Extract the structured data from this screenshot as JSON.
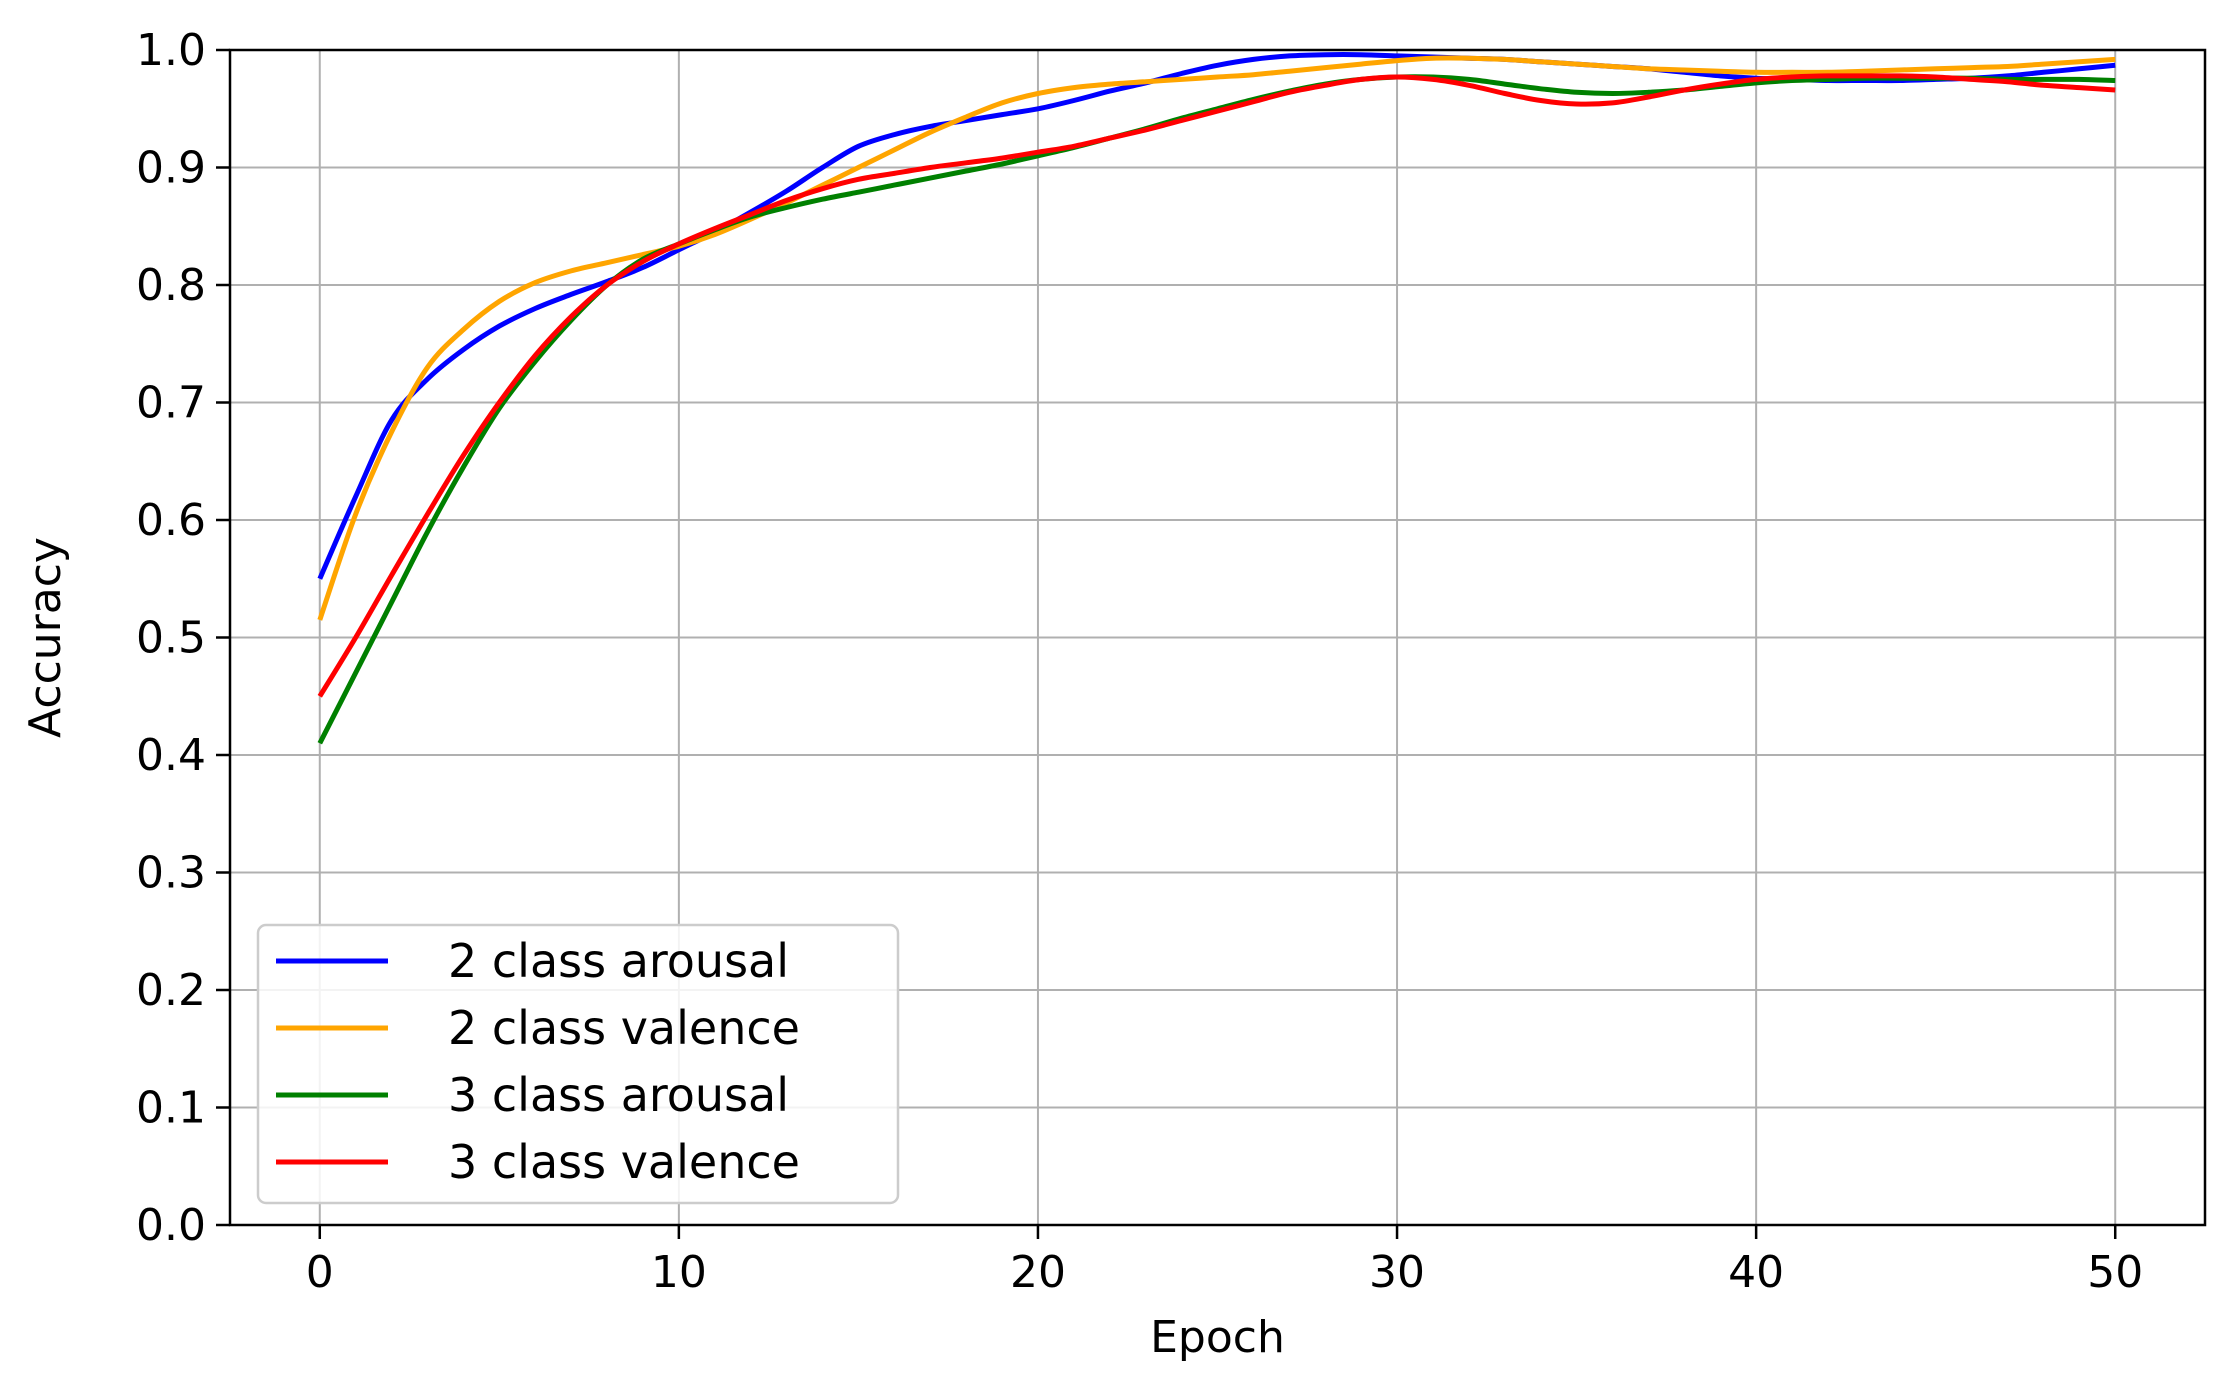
{
  "chart_data": {
    "type": "line",
    "title": "",
    "xlabel": "Epoch",
    "ylabel": "Accuracy",
    "xlim": [
      -2.5,
      52.5
    ],
    "ylim": [
      0.0,
      1.0
    ],
    "xticks": [
      0,
      10,
      20,
      30,
      40,
      50
    ],
    "xtick_labels": [
      "0",
      "10",
      "20",
      "30",
      "40",
      "50"
    ],
    "yticks": [
      0.0,
      0.1,
      0.2,
      0.3,
      0.4,
      0.5,
      0.6,
      0.7,
      0.8,
      0.9,
      1.0
    ],
    "ytick_labels": [
      "0.0",
      "0.1",
      "0.2",
      "0.3",
      "0.4",
      "0.5",
      "0.6",
      "0.7",
      "0.8",
      "0.9",
      "1.0"
    ],
    "grid": true,
    "legend_position": "lower-left",
    "x": [
      0,
      1,
      2,
      3,
      4,
      5,
      6,
      7,
      8,
      9,
      10,
      11,
      12,
      13,
      14,
      15,
      16,
      17,
      18,
      19,
      20,
      21,
      22,
      23,
      24,
      25,
      26,
      27,
      28,
      29,
      30,
      31,
      32,
      33,
      34,
      35,
      36,
      37,
      38,
      39,
      40,
      41,
      42,
      43,
      44,
      45,
      46,
      47,
      48,
      49,
      50
    ],
    "series": [
      {
        "name": "2 class arousal",
        "color": "#0000ff",
        "values": [
          0.55,
          0.62,
          0.685,
          0.72,
          0.745,
          0.765,
          0.78,
          0.792,
          0.803,
          0.815,
          0.83,
          0.845,
          0.862,
          0.88,
          0.9,
          0.918,
          0.928,
          0.935,
          0.94,
          0.945,
          0.95,
          0.957,
          0.965,
          0.972,
          0.98,
          0.987,
          0.992,
          0.995,
          0.996,
          0.996,
          0.995,
          0.994,
          0.993,
          0.992,
          0.99,
          0.988,
          0.986,
          0.984,
          0.981,
          0.978,
          0.976,
          0.975,
          0.974,
          0.974,
          0.974,
          0.975,
          0.976,
          0.978,
          0.981,
          0.984,
          0.987
        ]
      },
      {
        "name": "2 class valence",
        "color": "#ffa500",
        "values": [
          0.515,
          0.605,
          0.675,
          0.73,
          0.762,
          0.786,
          0.802,
          0.812,
          0.819,
          0.826,
          0.833,
          0.843,
          0.856,
          0.87,
          0.885,
          0.9,
          0.915,
          0.93,
          0.943,
          0.955,
          0.963,
          0.968,
          0.971,
          0.973,
          0.975,
          0.977,
          0.979,
          0.982,
          0.985,
          0.988,
          0.991,
          0.993,
          0.993,
          0.992,
          0.99,
          0.988,
          0.986,
          0.984,
          0.983,
          0.982,
          0.981,
          0.981,
          0.981,
          0.982,
          0.983,
          0.984,
          0.985,
          0.986,
          0.988,
          0.99,
          0.992
        ]
      },
      {
        "name": "3 class arousal",
        "color": "#008000",
        "values": [
          0.41,
          0.47,
          0.53,
          0.59,
          0.645,
          0.695,
          0.735,
          0.77,
          0.8,
          0.822,
          0.835,
          0.847,
          0.858,
          0.866,
          0.873,
          0.879,
          0.885,
          0.891,
          0.897,
          0.903,
          0.91,
          0.917,
          0.925,
          0.933,
          0.942,
          0.95,
          0.958,
          0.965,
          0.971,
          0.975,
          0.977,
          0.977,
          0.975,
          0.971,
          0.967,
          0.964,
          0.963,
          0.964,
          0.966,
          0.969,
          0.972,
          0.974,
          0.975,
          0.976,
          0.976,
          0.976,
          0.976,
          0.975,
          0.975,
          0.975,
          0.974
        ]
      },
      {
        "name": "3 class valence",
        "color": "#ff0000",
        "values": [
          0.45,
          0.5,
          0.553,
          0.605,
          0.655,
          0.7,
          0.74,
          0.773,
          0.8,
          0.82,
          0.835,
          0.848,
          0.86,
          0.872,
          0.882,
          0.89,
          0.895,
          0.9,
          0.904,
          0.908,
          0.913,
          0.918,
          0.925,
          0.932,
          0.94,
          0.948,
          0.956,
          0.964,
          0.97,
          0.975,
          0.977,
          0.975,
          0.97,
          0.963,
          0.957,
          0.954,
          0.955,
          0.96,
          0.966,
          0.971,
          0.975,
          0.977,
          0.978,
          0.978,
          0.978,
          0.977,
          0.975,
          0.973,
          0.97,
          0.968,
          0.966
        ]
      }
    ]
  }
}
